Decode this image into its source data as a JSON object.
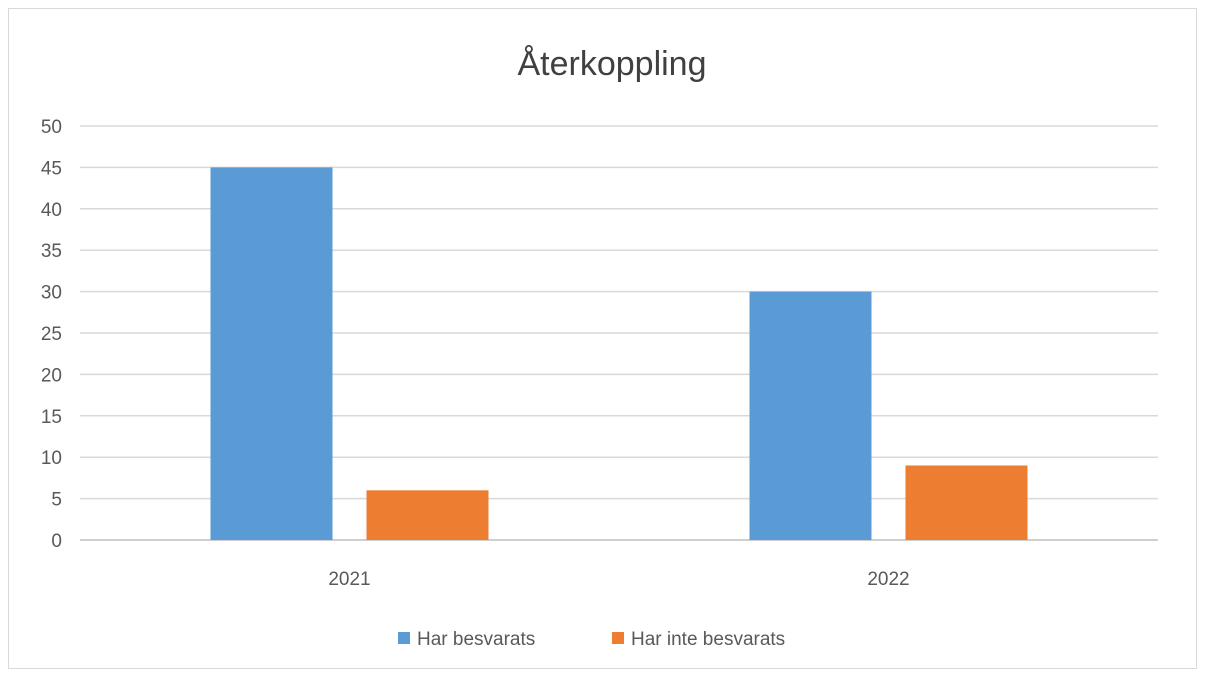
{
  "chart_data": {
    "type": "bar",
    "title": "Återkoppling",
    "xlabel": "",
    "ylabel": "",
    "categories": [
      "2021",
      "2022"
    ],
    "series": [
      {
        "name": "Har besvarats",
        "values": [
          45,
          30
        ],
        "color": "#5b9bd5"
      },
      {
        "name": "Har inte besvarats",
        "values": [
          6,
          9
        ],
        "color": "#ed7d31"
      }
    ],
    "ylim": [
      0,
      50
    ],
    "yticks": [
      "0",
      "5",
      "10",
      "15",
      "20",
      "25",
      "30",
      "35",
      "40",
      "45",
      "50"
    ],
    "grid": true,
    "legend_position": "bottom"
  }
}
